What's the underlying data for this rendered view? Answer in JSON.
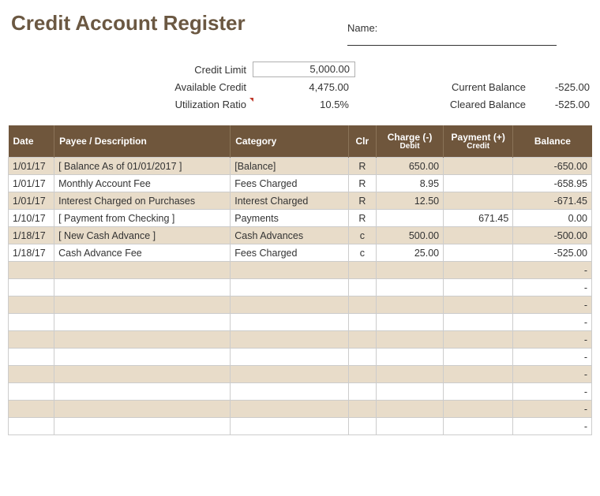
{
  "title": "Credit Account Register",
  "name_label": "Name:",
  "summary": {
    "credit_limit_label": "Credit Limit",
    "credit_limit_value": "5,000.00",
    "available_credit_label": "Available Credit",
    "available_credit_value": "4,475.00",
    "utilization_label": "Utilization Ratio",
    "utilization_value": "10.5%",
    "current_balance_label": "Current Balance",
    "current_balance_value": "-525.00",
    "cleared_balance_label": "Cleared Balance",
    "cleared_balance_value": "-525.00"
  },
  "columns": {
    "date": "Date",
    "payee": "Payee / Description",
    "category": "Category",
    "clr": "Clr",
    "charge_top": "Charge (-)",
    "charge_sub": "Debit",
    "payment_top": "Payment (+)",
    "payment_sub": "Credit",
    "balance": "Balance"
  },
  "rows": [
    {
      "date": "1/01/17",
      "payee": "[ Balance As of 01/01/2017 ]",
      "category": "[Balance]",
      "clr": "R",
      "charge": "650.00",
      "payment": "",
      "balance": "-650.00"
    },
    {
      "date": "1/01/17",
      "payee": "Monthly Account Fee",
      "category": "Fees Charged",
      "clr": "R",
      "charge": "8.95",
      "payment": "",
      "balance": "-658.95"
    },
    {
      "date": "1/01/17",
      "payee": "Interest Charged on Purchases",
      "category": "Interest Charged",
      "clr": "R",
      "charge": "12.50",
      "payment": "",
      "balance": "-671.45"
    },
    {
      "date": "1/10/17",
      "payee": "[ Payment from Checking ]",
      "category": "Payments",
      "clr": "R",
      "charge": "",
      "payment": "671.45",
      "balance": "0.00"
    },
    {
      "date": "1/18/17",
      "payee": "[ New Cash Advance ]",
      "category": "Cash Advances",
      "clr": "c",
      "charge": "500.00",
      "payment": "",
      "balance": "-500.00"
    },
    {
      "date": "1/18/17",
      "payee": "Cash Advance Fee",
      "category": "Fees Charged",
      "clr": "c",
      "charge": "25.00",
      "payment": "",
      "balance": "-525.00"
    },
    {
      "date": "",
      "payee": "",
      "category": "",
      "clr": "",
      "charge": "",
      "payment": "",
      "balance": "-"
    },
    {
      "date": "",
      "payee": "",
      "category": "",
      "clr": "",
      "charge": "",
      "payment": "",
      "balance": "-"
    },
    {
      "date": "",
      "payee": "",
      "category": "",
      "clr": "",
      "charge": "",
      "payment": "",
      "balance": "-"
    },
    {
      "date": "",
      "payee": "",
      "category": "",
      "clr": "",
      "charge": "",
      "payment": "",
      "balance": "-"
    },
    {
      "date": "",
      "payee": "",
      "category": "",
      "clr": "",
      "charge": "",
      "payment": "",
      "balance": "-"
    },
    {
      "date": "",
      "payee": "",
      "category": "",
      "clr": "",
      "charge": "",
      "payment": "",
      "balance": "-"
    },
    {
      "date": "",
      "payee": "",
      "category": "",
      "clr": "",
      "charge": "",
      "payment": "",
      "balance": "-"
    },
    {
      "date": "",
      "payee": "",
      "category": "",
      "clr": "",
      "charge": "",
      "payment": "",
      "balance": "-"
    },
    {
      "date": "",
      "payee": "",
      "category": "",
      "clr": "",
      "charge": "",
      "payment": "",
      "balance": "-"
    },
    {
      "date": "",
      "payee": "",
      "category": "",
      "clr": "",
      "charge": "",
      "payment": "",
      "balance": "-"
    }
  ],
  "colors": {
    "header_bg": "#6f563c",
    "title_color": "#6b5842",
    "alt_row": "#e8dcc9",
    "border": "#cccccc"
  }
}
